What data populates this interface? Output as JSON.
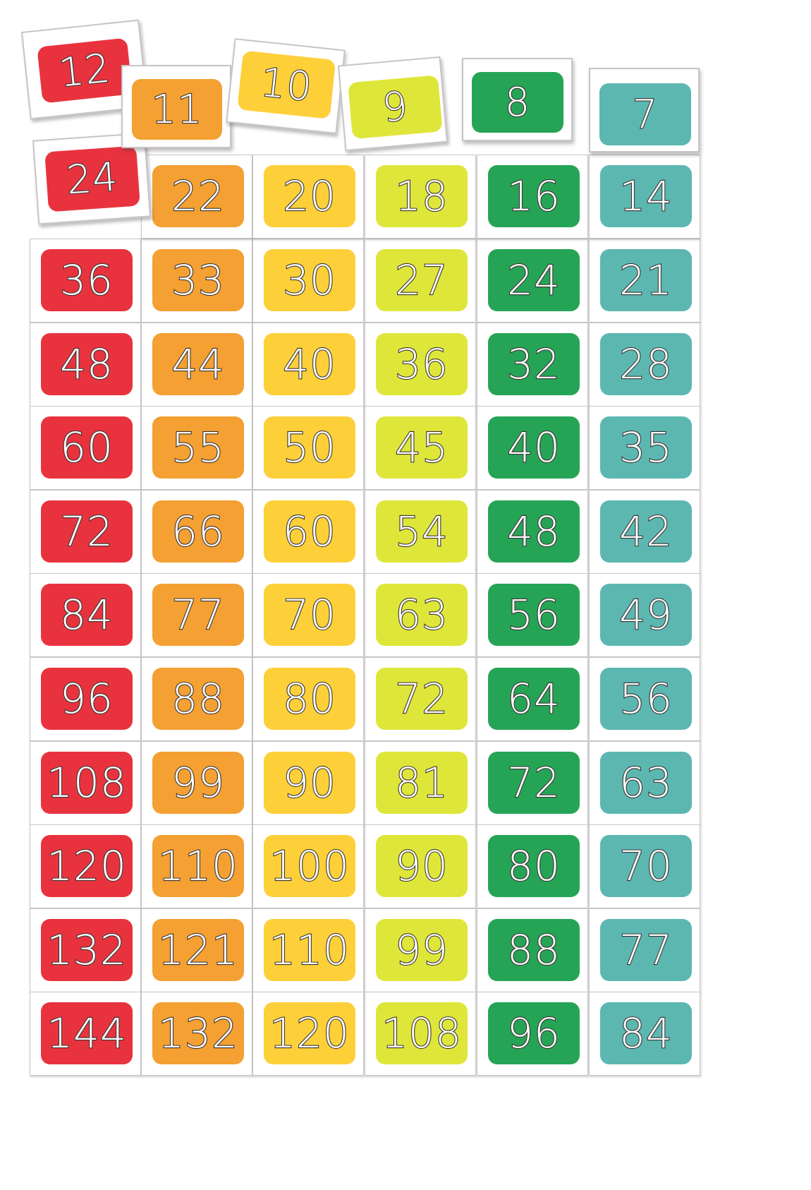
{
  "colors": {
    "red": "#e8333e",
    "orange": "#f4a032",
    "yellow": "#fdd03a",
    "lime": "#dfe63a",
    "green": "#26a456",
    "teal": "#5cb7b1",
    "card": "#ffffff",
    "outline": "#3a3433"
  },
  "column_colors": [
    "red",
    "orange",
    "yellow",
    "lime",
    "green",
    "teal"
  ],
  "loose_cards_row1": [
    "12",
    "11",
    "10",
    "9",
    "8",
    "7"
  ],
  "loose_cards_row2": [
    "24",
    "22",
    "20",
    "18",
    "16",
    "14"
  ],
  "grid_rows": [
    [
      "36",
      "33",
      "30",
      "27",
      "24",
      "21"
    ],
    [
      "48",
      "44",
      "40",
      "36",
      "32",
      "28"
    ],
    [
      "60",
      "55",
      "50",
      "45",
      "40",
      "35"
    ],
    [
      "72",
      "66",
      "60",
      "54",
      "48",
      "42"
    ],
    [
      "84",
      "77",
      "70",
      "63",
      "56",
      "49"
    ],
    [
      "96",
      "88",
      "80",
      "72",
      "64",
      "56"
    ],
    [
      "108",
      "99",
      "90",
      "81",
      "72",
      "63"
    ],
    [
      "120",
      "110",
      "100",
      "90",
      "80",
      "70"
    ],
    [
      "132",
      "121",
      "110",
      "99",
      "88",
      "77"
    ],
    [
      "144",
      "132",
      "120",
      "108",
      "96",
      "84"
    ]
  ]
}
